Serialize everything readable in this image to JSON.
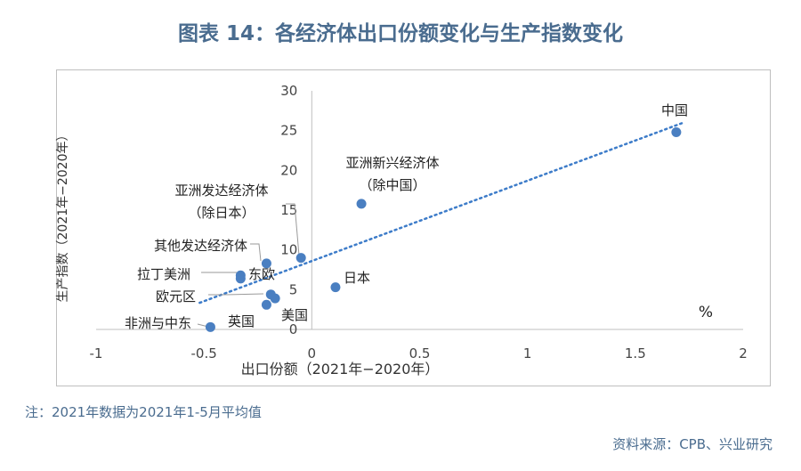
{
  "title": "图表 14：各经济体出口份额变化与生产指数变化",
  "note": "注：2021年数据为2021年1-5月平均值",
  "source": "资料来源：CPB、兴业研究",
  "colors": {
    "point": "#4a7fc1",
    "trend": "#3d7cc9",
    "axis": "#bfbfbf",
    "title": "#4a6c8f"
  },
  "chart_data": {
    "type": "scatter",
    "title": "图表 14：各经济体出口份额变化与生产指数变化",
    "xlabel": "出口份额（2021年−2020年）",
    "ylabel": "生产指数（2021年−2020年）",
    "unit_label": "%",
    "xlim": [
      -1,
      2
    ],
    "ylim": [
      0,
      30
    ],
    "x_ticks": [
      -1,
      -0.5,
      0,
      0.5,
      1,
      1.5,
      2
    ],
    "y_ticks": [
      0,
      5,
      10,
      15,
      20,
      25,
      30
    ],
    "grid": false,
    "trendline": {
      "style": "dotted",
      "slope": 10.1,
      "intercept": 8.6
    },
    "points": [
      {
        "label": "中国",
        "x": 1.69,
        "y": 24.8
      },
      {
        "label": "亚洲新兴经济体（除中国）",
        "x": 0.23,
        "y": 15.8
      },
      {
        "label": "亚洲发达经济体（除日本）",
        "x": -0.05,
        "y": 9.0
      },
      {
        "label": "日本",
        "x": 0.11,
        "y": 5.3
      },
      {
        "label": "其他发达经济体",
        "x": -0.21,
        "y": 8.3
      },
      {
        "label": "拉丁美洲",
        "x": -0.33,
        "y": 6.8
      },
      {
        "label": "东欧",
        "x": -0.33,
        "y": 6.4
      },
      {
        "label": "欧元区",
        "x": -0.19,
        "y": 4.4
      },
      {
        "label": "美国",
        "x": -0.17,
        "y": 3.9
      },
      {
        "label": "英国",
        "x": -0.21,
        "y": 3.1
      },
      {
        "label": "非洲与中东",
        "x": -0.47,
        "y": 0.3
      }
    ]
  }
}
